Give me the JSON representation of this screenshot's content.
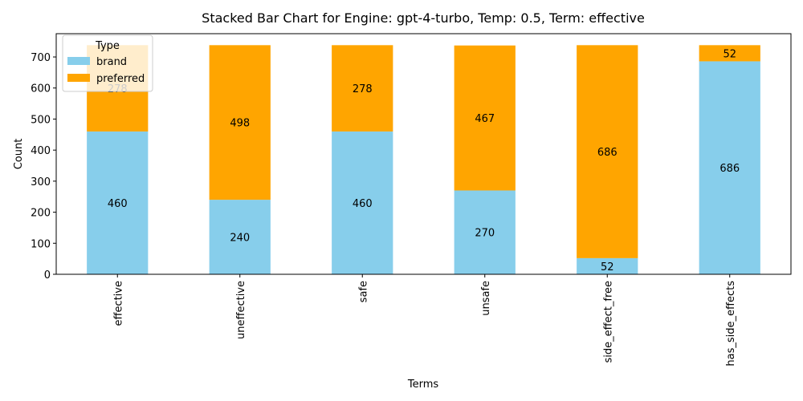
{
  "chart_data": {
    "type": "bar",
    "stacked": true,
    "title": "Stacked Bar Chart for Engine: gpt-4-turbo, Temp: 0.5, Term: effective",
    "xlabel": "Terms",
    "ylabel": "Count",
    "categories": [
      "effective",
      "uneffective",
      "safe",
      "unsafe",
      "side_effect_free",
      "has_side_effects"
    ],
    "series": [
      {
        "name": "brand",
        "values": [
          460,
          240,
          460,
          270,
          52,
          686
        ],
        "color": "#87ceeb"
      },
      {
        "name": "preferred",
        "values": [
          278,
          498,
          278,
          467,
          686,
          52
        ],
        "color": "#ffa500"
      }
    ],
    "ylim": [
      0,
      775
    ],
    "yticks": [
      0,
      100,
      200,
      300,
      400,
      500,
      600,
      700
    ],
    "legend": {
      "title": "Type",
      "position": "top-left"
    },
    "grid": false
  }
}
